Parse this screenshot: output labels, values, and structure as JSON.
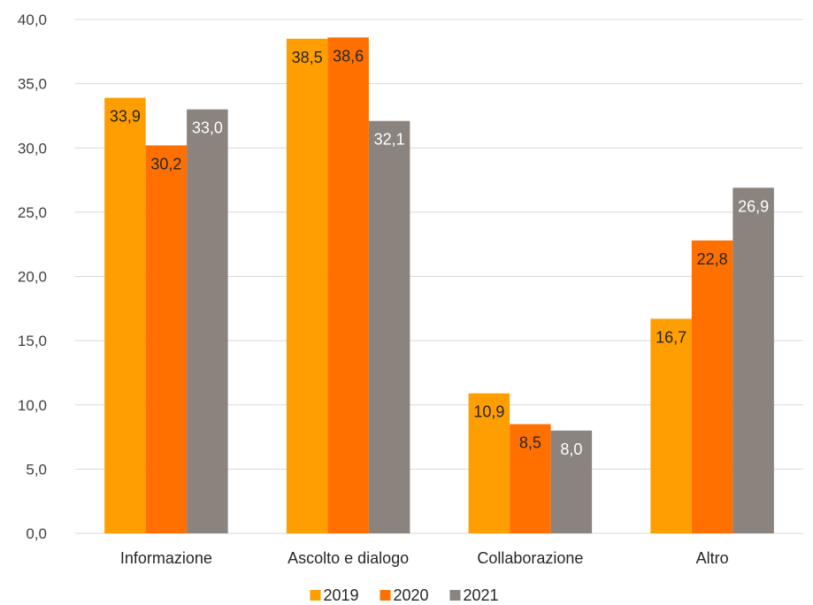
{
  "chart_data": {
    "type": "bar",
    "title": "",
    "xlabel": "",
    "ylabel": "",
    "categories": [
      "Informazione",
      "Ascolto e dialogo",
      "Collaborazione",
      "Altro"
    ],
    "series": [
      {
        "name": "2019",
        "color": "#FF9E00",
        "values": [
          33.9,
          38.5,
          10.9,
          16.7
        ],
        "labels": [
          "33,9",
          "38,5",
          "10,9",
          "16,7"
        ]
      },
      {
        "name": "2020",
        "color": "#FF7000",
        "values": [
          30.2,
          38.6,
          8.5,
          22.8
        ],
        "labels": [
          "30,2",
          "38,6",
          "8,5",
          "22,8"
        ]
      },
      {
        "name": "2021",
        "color": "#8A837E",
        "values": [
          33.0,
          32.1,
          8.0,
          26.9
        ],
        "labels": [
          "33,0",
          "32,1",
          "8,0",
          "26,9"
        ]
      }
    ],
    "ylim": [
      0,
      40
    ],
    "yticks": [
      0,
      5,
      10,
      15,
      20,
      25,
      30,
      35,
      40
    ],
    "ytick_labels": [
      "0,0",
      "5,0",
      "10,0",
      "15,0",
      "20,0",
      "25,0",
      "30,0",
      "35,0",
      "40,0"
    ],
    "grid": true,
    "legend_position": "bottom",
    "gridline_color": "#D9D9D9"
  }
}
